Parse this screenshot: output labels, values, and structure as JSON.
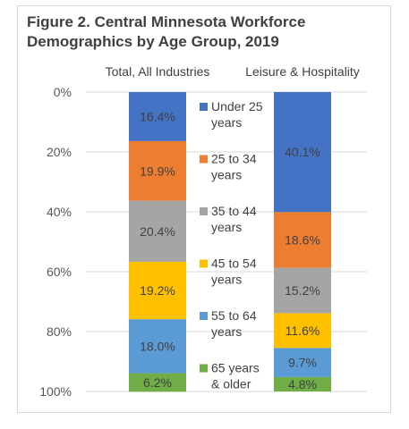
{
  "chart_data": {
    "type": "bar",
    "stacked": true,
    "orientation": "vertical",
    "title": "Figure 2. Central Minnesota Workforce Demographics by Age Group, 2019",
    "title_lines": [
      "Figure 2. Central Minnesota Workforce",
      "Demographics by Age Group, 2019"
    ],
    "categories": [
      "Total, All Industries",
      "Leisure & Hospitality"
    ],
    "y_axis": {
      "min": 0,
      "max": 100,
      "reversed": true,
      "ticks": [
        0,
        20,
        40,
        60,
        80,
        100
      ],
      "tick_labels": [
        "0%",
        "20%",
        "40%",
        "60%",
        "80%",
        "100%"
      ]
    },
    "grid": true,
    "legend": {
      "position": "center"
    },
    "series": [
      {
        "name": "Under 25 years",
        "legend_lines": [
          "Under 25",
          "years"
        ],
        "color": "#4472c4",
        "values": [
          16.4,
          40.1
        ],
        "labels": [
          "16.4%",
          "40.1%"
        ]
      },
      {
        "name": "25 to 34 years",
        "legend_lines": [
          "25 to 34",
          "years"
        ],
        "color": "#ed7d31",
        "values": [
          19.9,
          18.6
        ],
        "labels": [
          "19.9%",
          "18.6%"
        ]
      },
      {
        "name": "35 to 44 years",
        "legend_lines": [
          "35 to 44",
          "years"
        ],
        "color": "#a5a5a5",
        "values": [
          20.4,
          15.2
        ],
        "labels": [
          "20.4%",
          "15.2%"
        ]
      },
      {
        "name": "45 to 54 years",
        "legend_lines": [
          "45 to 54",
          "years"
        ],
        "color": "#ffc000",
        "values": [
          19.2,
          11.6
        ],
        "labels": [
          "19.2%",
          "11.6%"
        ]
      },
      {
        "name": "55 to 64 years",
        "legend_lines": [
          "55 to 64",
          "years"
        ],
        "color": "#5b9bd5",
        "values": [
          18.0,
          9.7
        ],
        "labels": [
          "18.0%",
          "9.7%"
        ]
      },
      {
        "name": "65 years & older",
        "legend_lines": [
          "65 years",
          "& older"
        ],
        "color": "#70ad47",
        "values": [
          6.2,
          4.8
        ],
        "labels": [
          "6.2%",
          "4.8%"
        ]
      }
    ]
  }
}
